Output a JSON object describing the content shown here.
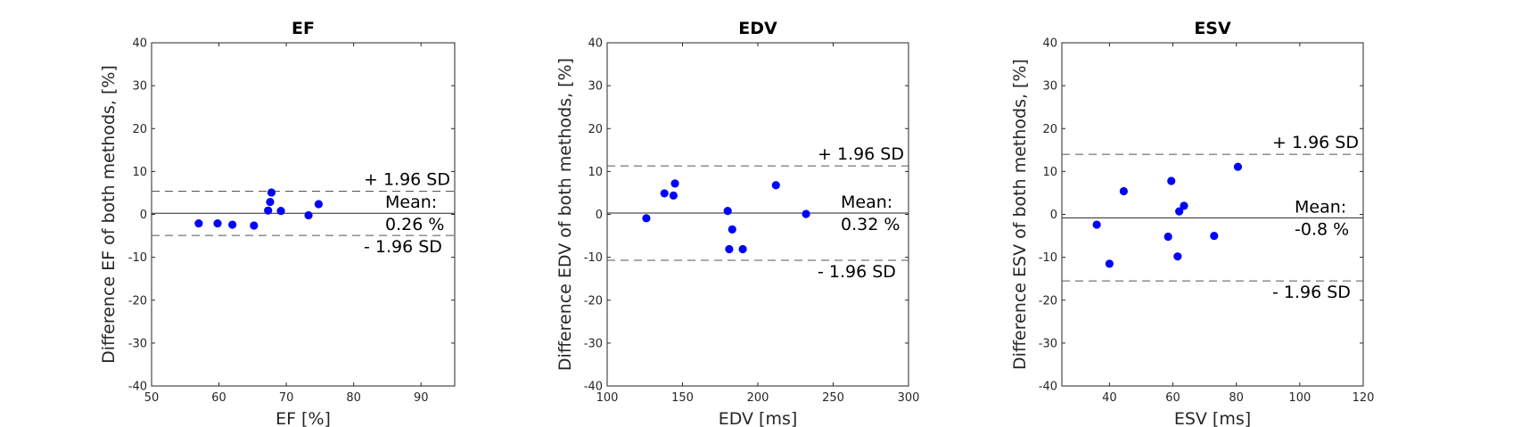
{
  "chart_data": [
    {
      "type": "scatter",
      "title": "EF",
      "xlabel": "EF [%]",
      "ylabel": "Difference EF of both methods, [%]",
      "xlim": [
        50,
        95
      ],
      "ylim": [
        -40,
        40
      ],
      "xticks": [
        50,
        60,
        70,
        80,
        90
      ],
      "yticks": [
        -40,
        -30,
        -20,
        -10,
        0,
        10,
        20,
        30,
        40
      ],
      "points": [
        {
          "x": 57.0,
          "y": -2.1
        },
        {
          "x": 59.8,
          "y": -2.1
        },
        {
          "x": 62.0,
          "y": -2.4
        },
        {
          "x": 65.2,
          "y": -2.6
        },
        {
          "x": 67.3,
          "y": 0.9
        },
        {
          "x": 67.6,
          "y": 2.9
        },
        {
          "x": 67.8,
          "y": 5.1
        },
        {
          "x": 69.2,
          "y": 0.8
        },
        {
          "x": 73.3,
          "y": -0.2
        },
        {
          "x": 74.8,
          "y": 2.4
        }
      ],
      "mean": 0.26,
      "upper_limit": 5.4,
      "lower_limit": -4.9,
      "annotations": {
        "upper": "+ 1.96 SD",
        "mean_label": "Mean:",
        "mean_value": "0.26 %",
        "lower": "- 1.96 SD"
      },
      "marker_color": "#0000ff",
      "line_color": "#262626",
      "grid": false
    },
    {
      "type": "scatter",
      "title": "EDV",
      "xlabel": "EDV [ms]",
      "ylabel": "Difference EDV of both methods, [%]",
      "xlim": [
        100,
        300
      ],
      "ylim": [
        -40,
        40
      ],
      "xticks": [
        100,
        150,
        200,
        250,
        300
      ],
      "yticks": [
        -40,
        -30,
        -20,
        -10,
        0,
        10,
        20,
        30,
        40
      ],
      "points": [
        {
          "x": 126,
          "y": -0.9
        },
        {
          "x": 138,
          "y": 4.9
        },
        {
          "x": 144,
          "y": 4.4
        },
        {
          "x": 145,
          "y": 7.2
        },
        {
          "x": 180,
          "y": 0.8
        },
        {
          "x": 181,
          "y": -8.1
        },
        {
          "x": 183,
          "y": -3.5
        },
        {
          "x": 190,
          "y": -8.1
        },
        {
          "x": 212,
          "y": 6.8
        },
        {
          "x": 232,
          "y": 0.1
        }
      ],
      "mean": 0.32,
      "upper_limit": 11.3,
      "lower_limit": -10.7,
      "annotations": {
        "upper": "+ 1.96 SD",
        "mean_label": "Mean:",
        "mean_value": "0.32 %",
        "lower": "- 1.96 SD"
      },
      "marker_color": "#0000ff",
      "line_color": "#262626",
      "grid": false
    },
    {
      "type": "scatter",
      "title": "ESV",
      "xlabel": "ESV [ms]",
      "ylabel": "Difference ESV of both methods, [%]",
      "xlim": [
        25,
        120
      ],
      "ylim": [
        -40,
        40
      ],
      "xticks": [
        40,
        60,
        80,
        100,
        120
      ],
      "yticks": [
        -40,
        -30,
        -20,
        -10,
        0,
        10,
        20,
        30,
        40
      ],
      "points": [
        {
          "x": 36,
          "y": -2.4
        },
        {
          "x": 40,
          "y": -11.5
        },
        {
          "x": 44.5,
          "y": 5.4
        },
        {
          "x": 58.5,
          "y": -5.2
        },
        {
          "x": 59.5,
          "y": 7.8
        },
        {
          "x": 61.5,
          "y": -9.8
        },
        {
          "x": 62,
          "y": 0.7
        },
        {
          "x": 63.5,
          "y": 2.0
        },
        {
          "x": 73,
          "y": -5.0
        },
        {
          "x": 80.5,
          "y": 11.1
        }
      ],
      "mean": -0.8,
      "upper_limit": 14.0,
      "lower_limit": -15.5,
      "annotations": {
        "upper": "+ 1.96 SD",
        "mean_label": "Mean:",
        "mean_value": "-0.8 %",
        "lower": "- 1.96 SD"
      },
      "marker_color": "#0000ff",
      "line_color": "#262626",
      "grid": false
    }
  ]
}
